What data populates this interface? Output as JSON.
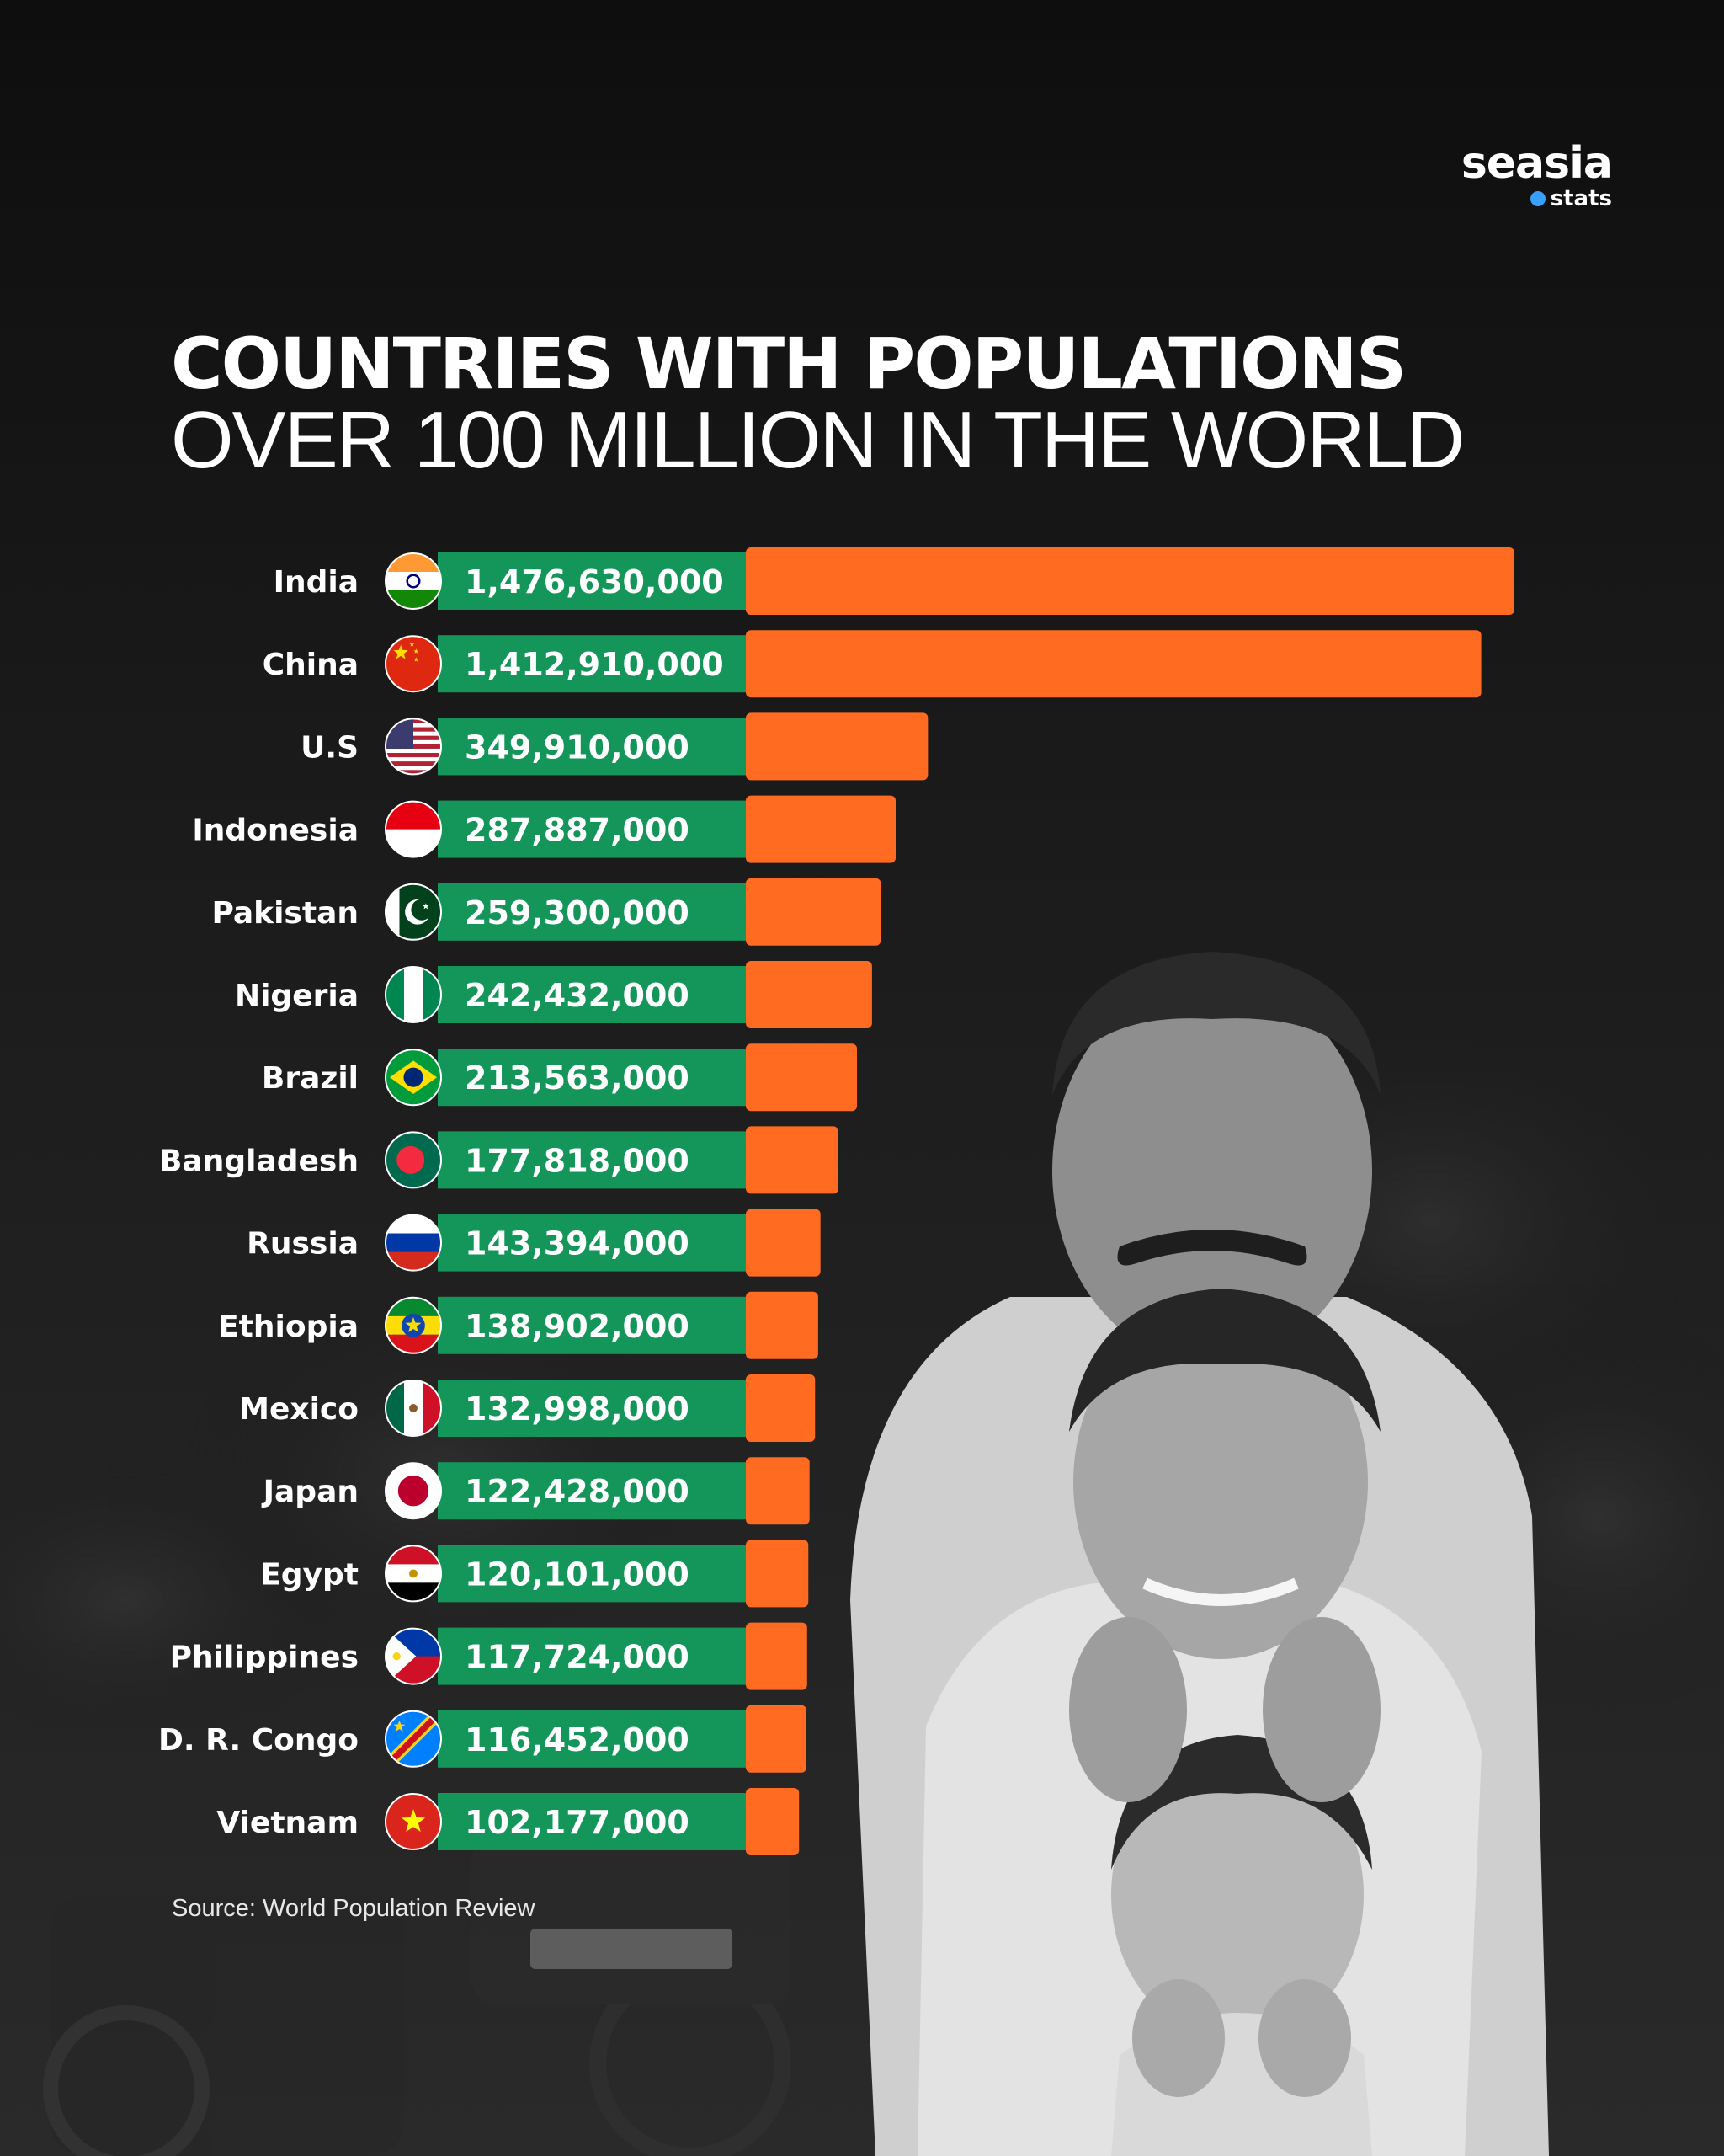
{
  "brand": {
    "name": "seasia",
    "sub": "stats"
  },
  "title_line1": "COUNTRIES WITH POPULATIONS",
  "title_line2": "OVER 100 MILLION IN THE WORLD",
  "source": "Source: World Population Review",
  "colors": {
    "bar": "#ff6b21",
    "label_band": "#14955a",
    "background": "#141414",
    "text": "#ffffff"
  },
  "chart_data": {
    "type": "bar",
    "orientation": "horizontal",
    "title": "COUNTRIES WITH POPULATIONS OVER 100 MILLION IN THE WORLD",
    "categories": [
      "India",
      "China",
      "U.S",
      "Indonesia",
      "Pakistan",
      "Nigeria",
      "Brazil",
      "Bangladesh",
      "Russia",
      "Ethiopia",
      "Mexico",
      "Japan",
      "Egypt",
      "Philippines",
      "D. R. Congo",
      "Vietnam"
    ],
    "values": [
      1476630000,
      1412910000,
      349910000,
      287887000,
      259300000,
      242432000,
      213563000,
      177818000,
      143394000,
      138902000,
      132998000,
      122428000,
      120101000,
      117724000,
      116452000,
      102177000
    ],
    "value_labels": [
      "1,476,630,000",
      "1,412,910,000",
      "349,910,000",
      "287,887,000",
      "259,300,000",
      "242,432,000",
      "213,563,000",
      "177,818,000",
      "143,394,000",
      "138,902,000",
      "132,998,000",
      "122,428,000",
      "120,101,000",
      "117,724,000",
      "116,452,000",
      "102,177,000"
    ],
    "flag_icons": [
      "india-flag-icon",
      "china-flag-icon",
      "us-flag-icon",
      "indonesia-flag-icon",
      "pakistan-flag-icon",
      "nigeria-flag-icon",
      "brazil-flag-icon",
      "bangladesh-flag-icon",
      "russia-flag-icon",
      "ethiopia-flag-icon",
      "mexico-flag-icon",
      "japan-flag-icon",
      "egypt-flag-icon",
      "philippines-flag-icon",
      "dr-congo-flag-icon",
      "vietnam-flag-icon"
    ],
    "xlabel": "",
    "ylabel": "",
    "grid": false,
    "legend": false
  }
}
